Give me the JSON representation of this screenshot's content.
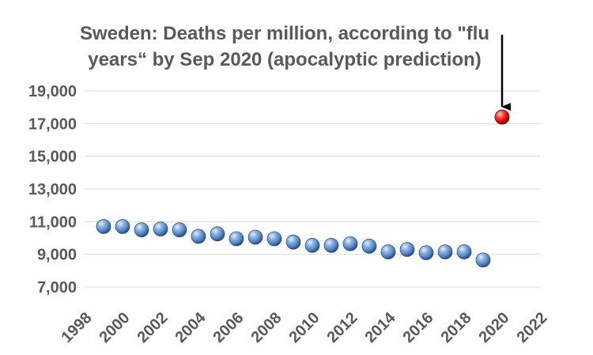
{
  "chart_data": {
    "type": "scatter",
    "title_lines": [
      "Sweden: Deaths per million, according to \"flu",
      "years“ by Sep 2020 (apocalyptic prediction)"
    ],
    "xlabel": "",
    "ylabel": "",
    "xlim": [
      1998,
      2022
    ],
    "ylim": [
      7000,
      19000
    ],
    "x_ticks": [
      {
        "value": 1998,
        "label": "1998"
      },
      {
        "value": 2000,
        "label": "2000"
      },
      {
        "value": 2002,
        "label": "2002"
      },
      {
        "value": 2004,
        "label": "2004"
      },
      {
        "value": 2006,
        "label": "2006"
      },
      {
        "value": 2008,
        "label": "2008"
      },
      {
        "value": 2010,
        "label": "2010"
      },
      {
        "value": 2012,
        "label": "2012"
      },
      {
        "value": 2014,
        "label": "2014"
      },
      {
        "value": 2016,
        "label": "2016"
      },
      {
        "value": 2018,
        "label": "2018"
      },
      {
        "value": 2020,
        "label": "2020"
      },
      {
        "value": 2022,
        "label": "2022"
      }
    ],
    "y_ticks": [
      {
        "value": 7000,
        "label": "7,000"
      },
      {
        "value": 9000,
        "label": "9,000"
      },
      {
        "value": 11000,
        "label": "11,000"
      },
      {
        "value": 13000,
        "label": "13,000"
      },
      {
        "value": 15000,
        "label": "15,000"
      },
      {
        "value": 17000,
        "label": "17,000"
      },
      {
        "value": 19000,
        "label": "19,000"
      }
    ],
    "grid": true,
    "series": [
      {
        "color": "#4f81bd",
        "points": [
          {
            "x": 1999,
            "y": 10700
          },
          {
            "x": 2000,
            "y": 10700
          },
          {
            "x": 2001,
            "y": 10500
          },
          {
            "x": 2002,
            "y": 10550
          },
          {
            "x": 2003,
            "y": 10500
          },
          {
            "x": 2004,
            "y": 10100
          },
          {
            "x": 2005,
            "y": 10250
          },
          {
            "x": 2006,
            "y": 9950
          },
          {
            "x": 2007,
            "y": 10050
          },
          {
            "x": 2008,
            "y": 9950
          },
          {
            "x": 2009,
            "y": 9750
          },
          {
            "x": 2010,
            "y": 9550
          },
          {
            "x": 2011,
            "y": 9550
          },
          {
            "x": 2012,
            "y": 9650
          },
          {
            "x": 2013,
            "y": 9500
          },
          {
            "x": 2014,
            "y": 9150
          },
          {
            "x": 2015,
            "y": 9300
          },
          {
            "x": 2016,
            "y": 9100
          },
          {
            "x": 2017,
            "y": 9150
          },
          {
            "x": 2018,
            "y": 9150
          },
          {
            "x": 2019,
            "y": 8650
          }
        ]
      },
      {
        "color": "#e00000",
        "points": [
          {
            "x": 2020,
            "y": 17400
          }
        ]
      }
    ],
    "annotations": [
      {
        "type": "arrow",
        "target_x": 2020,
        "target_y": 17400,
        "direction": "down",
        "color": "#000000"
      }
    ]
  }
}
